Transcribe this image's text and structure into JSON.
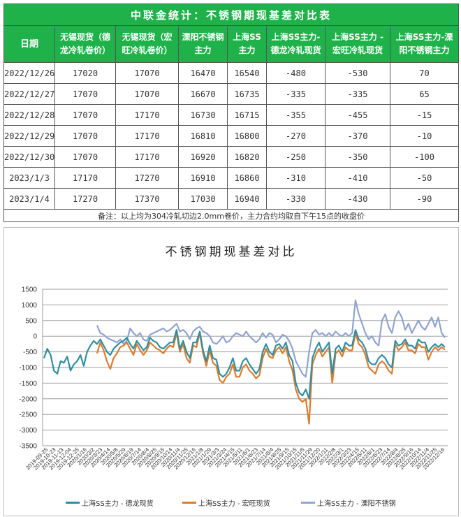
{
  "table": {
    "title": "中联金统计：不锈钢期现基差对比表",
    "headers": [
      [
        "日期"
      ],
      [
        "无锡现货（德",
        "龙冷轧卷价）"
      ],
      [
        "无锡现货（宏",
        "旺冷轧卷价）"
      ],
      [
        "溧阳不锈钢",
        "主力"
      ],
      [
        "上海SS",
        "主力"
      ],
      [
        "上海SS主力-",
        "德龙冷轧现货"
      ],
      [
        "上海SS主力 -",
        "宏旺冷轧现货"
      ],
      [
        "上海SS主力-溧",
        "阳不锈钢主力"
      ]
    ],
    "rows": [
      [
        "2022/12/26",
        "17020",
        "17070",
        "16470",
        "16540",
        "-480",
        "-530",
        "70"
      ],
      [
        "2022/12/27",
        "17070",
        "17070",
        "16670",
        "16735",
        "-335",
        "-335",
        "65"
      ],
      [
        "2022/12/28",
        "17070",
        "17170",
        "16730",
        "16715",
        "-355",
        "-455",
        "-15"
      ],
      [
        "2022/12/29",
        "17070",
        "17170",
        "16810",
        "16800",
        "-270",
        "-370",
        "-10"
      ],
      [
        "2022/12/30",
        "17070",
        "17170",
        "16920",
        "16820",
        "-250",
        "-350",
        "-100"
      ],
      [
        "2023/1/3",
        "17170",
        "17270",
        "16910",
        "16860",
        "-310",
        "-410",
        "-50"
      ],
      [
        "2023/1/4",
        "17270",
        "17370",
        "17030",
        "16940",
        "-330",
        "-430",
        "-90"
      ]
    ],
    "note": "备注：以上均为304冷轧切边2.0mm卷价，主力合约均取自下午15点的收盘价"
  },
  "chart_data": {
    "type": "line",
    "title": "不锈钢期现基差对比",
    "xlabel": "",
    "ylabel": "",
    "ylim": [
      -3500,
      1500
    ],
    "yticks": [
      1500,
      1000,
      500,
      0,
      -500,
      -1000,
      -1500,
      -2000,
      -2500,
      -3000,
      -3500
    ],
    "grid": true,
    "legend_position": "bottom",
    "x_tick_labels": [
      "2019-09-25",
      "2019-10-23",
      "2019-11-13",
      "2019-12-04",
      "2019-12-25",
      "2020/1/16",
      "2020/3/2",
      "2020/3/23",
      "2020/4/14",
      "2020/5/8",
      "2020/5/29",
      "2020/6/19",
      "2020/7/14",
      "2020/8/4",
      "2020/8/25",
      "2020/9/15",
      "2020/10/14",
      "2020/11/4",
      "2020/11/25",
      "2020/12/16",
      "2021/1/8",
      "2021/1/29",
      "2021/3/3",
      "2021/3/24",
      "2021/4/15",
      "2021/5/11",
      "2021/6/1",
      "2021/6/23",
      "2021/7/14",
      "2021/8/4",
      "2021/8/25",
      "2021/9/15",
      "2021/10/15",
      "2021/11/5",
      "2021/11/29",
      "2021/12/20",
      "2022/1/11",
      "2022/2/8",
      "2022/3/1",
      "2022/3/23",
      "2022/4/15",
      "2022/5/11",
      "2022/6/1",
      "2022/6/23",
      "2022/7/14",
      "2022/8/4",
      "2022/8/25",
      "2022/9/16",
      "2022/10/14",
      "2022/11/4",
      "2022/11/25",
      "2022/12/16"
    ],
    "series": [
      {
        "name": "上海SS主力 - 德龙现货",
        "color": "#2e8fa3",
        "values": [
          -700,
          -400,
          -600,
          -1100,
          -1200,
          -800,
          -850,
          -650,
          -1100,
          -900,
          -800,
          -600,
          -950,
          -500,
          -300,
          -150,
          -250,
          -100,
          -300,
          -500,
          -600,
          -400,
          -300,
          -200,
          -150,
          -50,
          -250,
          -400,
          -150,
          -300,
          -450,
          -350,
          -50,
          -150,
          -200,
          -350,
          -400,
          -300,
          -200,
          -200,
          200,
          -400,
          -150,
          -500,
          -700,
          -200,
          -200,
          150,
          -450,
          -800,
          -300,
          -700,
          -750,
          -1200,
          -1300,
          -1200,
          -1000,
          -700,
          -1100,
          -1100,
          -800,
          -700,
          -900,
          -1050,
          -1200,
          -1050,
          -500,
          -250,
          -500,
          -600,
          -300,
          -250,
          -400,
          -200,
          -600,
          -800,
          -1500,
          -1800,
          -1900,
          -1700,
          -2000,
          -700,
          -400,
          -200,
          -500,
          -350,
          -200,
          -1200,
          -400,
          -300,
          -500,
          -200,
          -300,
          -300,
          200,
          -100,
          -200,
          -400,
          -800,
          -900,
          -900,
          -700,
          -600,
          -700,
          -900,
          -1000,
          -150,
          -300,
          -250,
          -100,
          -300,
          -300,
          -400,
          -100,
          -200,
          -200,
          -500,
          -350,
          -250,
          -350,
          -250,
          -350
        ]
      },
      {
        "name": "上海SS主力 - 宏旺现货",
        "color": "#e07b2a",
        "values": [
          null,
          null,
          null,
          null,
          null,
          null,
          null,
          null,
          null,
          null,
          null,
          null,
          null,
          null,
          null,
          null,
          -550,
          -200,
          -450,
          -800,
          -1050,
          -700,
          -550,
          -350,
          -300,
          -200,
          -400,
          -600,
          -250,
          -450,
          -600,
          -450,
          -200,
          -300,
          -400,
          -450,
          -550,
          -400,
          -300,
          -350,
          100,
          -500,
          -250,
          -700,
          -850,
          -300,
          -350,
          100,
          -550,
          -950,
          -450,
          -850,
          -950,
          -1400,
          -1500,
          -1300,
          -1200,
          -900,
          -1300,
          -1300,
          -1000,
          -900,
          -1100,
          -1200,
          -1350,
          -1250,
          -700,
          -400,
          -650,
          -700,
          -450,
          -350,
          -550,
          -350,
          -800,
          -1100,
          -1700,
          -2000,
          -2100,
          -2000,
          -2800,
          -900,
          -600,
          -400,
          -650,
          -500,
          -350,
          -1500,
          -550,
          -450,
          -650,
          -350,
          -450,
          -450,
          100,
          -250,
          -350,
          -600,
          -1000,
          -1100,
          -1200,
          -900,
          -800,
          -900,
          -1100,
          -1200,
          -250,
          -450,
          -350,
          -200,
          -450,
          -450,
          -550,
          -250,
          -350,
          -350,
          -750,
          -500,
          -350,
          -450,
          -350,
          -430
        ]
      },
      {
        "name": "上海SS主力 - 溧阳不锈钢",
        "color": "#8fa3d4",
        "values": [
          null,
          null,
          null,
          null,
          null,
          null,
          null,
          null,
          null,
          null,
          null,
          null,
          null,
          null,
          null,
          null,
          350,
          100,
          50,
          -50,
          -100,
          -150,
          -200,
          -100,
          -250,
          -150,
          250,
          100,
          0,
          100,
          -100,
          -150,
          50,
          100,
          150,
          200,
          250,
          150,
          200,
          300,
          400,
          150,
          200,
          100,
          -100,
          150,
          250,
          300,
          150,
          100,
          0,
          -200,
          -250,
          -150,
          0,
          -200,
          -150,
          0,
          100,
          50,
          0,
          150,
          0,
          -100,
          -200,
          -100,
          100,
          -50,
          100,
          50,
          -200,
          -100,
          50,
          0,
          -150,
          -400,
          -800,
          -1000,
          -1200,
          -1300,
          -500,
          100,
          200,
          50,
          100,
          0,
          100,
          0,
          150,
          50,
          0,
          100,
          0,
          100,
          1150,
          700,
          400,
          100,
          -100,
          0,
          -200,
          -300,
          500,
          700,
          300,
          100,
          600,
          800,
          600,
          200,
          400,
          100,
          300,
          500,
          300,
          200,
          400,
          600,
          300,
          600,
          100,
          -50
        ]
      }
    ]
  },
  "legend": {
    "items": [
      {
        "label": "上海SS主力 - 德龙现货",
        "color": "#2e8fa3"
      },
      {
        "label": "上海SS主力 - 宏旺现货",
        "color": "#e07b2a"
      },
      {
        "label": "上海SS主力 - 溧阳不锈钢",
        "color": "#8fa3d4"
      }
    ]
  }
}
